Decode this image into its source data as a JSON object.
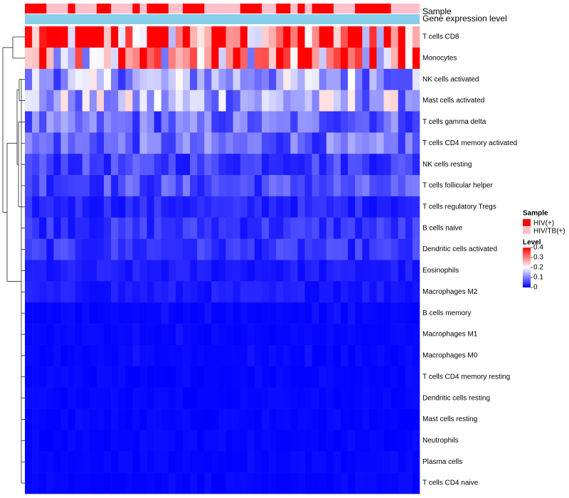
{
  "chart_data": {
    "type": "heatmap",
    "annotation_tracks": [
      {
        "title": "Sample",
        "values": [
          "HIV(+)",
          "HIV(+)",
          "HIV(+)",
          "HIV/TB(+)",
          "HIV/TB(+)",
          "HIV/TB(+)",
          "HIV(+)",
          "HIV/TB(+)",
          "HIV/TB(+)",
          "HIV/TB(+)",
          "HIV(+)",
          "HIV(+)",
          "HIV/TB(+)",
          "HIV/TB(+)",
          "HIV/TB(+)",
          "HIV(+)",
          "HIV/TB(+)",
          "HIV(+)",
          "HIV(+)",
          "HIV(+)",
          "HIV/TB(+)",
          "HIV/TB(+)",
          "HIV(+)",
          "HIV(+)",
          "HIV(+)",
          "HIV/TB(+)",
          "HIV/TB(+)",
          "HIV/TB(+)",
          "HIV/TB(+)",
          "HIV/TB(+)",
          "HIV(+)",
          "HIV(+)",
          "HIV(+)",
          "HIV/TB(+)",
          "HIV/TB(+)",
          "HIV(+)",
          "HIV(+)",
          "HIV/TB(+)",
          "HIV(+)",
          "HIV/TB(+)",
          "HIV(+)",
          "HIV(+)",
          "HIV(+)",
          "HIV/TB(+)",
          "HIV/TB(+)",
          "HIV/TB(+)",
          "HIV(+)",
          "HIV(+)",
          "HIV(+)",
          "HIV(+)",
          "HIV(+)",
          "HIV/TB(+)",
          "HIV/TB(+)",
          "HIV/TB(+)",
          "HIV/TB(+)"
        ]
      },
      {
        "title": "Gene expression level",
        "color": "#87ceeb"
      }
    ],
    "rows": [
      "T cells CD8",
      "Monocytes",
      "NK cells activated",
      "Mast cells activated",
      "T cells gamma delta",
      "T cells CD4 memory activated",
      "NK cells resting",
      "T cells follicular helper",
      "T cells regulatory  Tregs",
      "B cells naive",
      "Dendritic cells activated",
      "Eosinophils",
      "Macrophages M2",
      "B cells memory",
      "Macrophages M1",
      "Macrophages M0",
      "T cells CD4 memory resting",
      "Dendritic cells resting",
      "Mast cells resting",
      "Neutrophils",
      "Plasma cells",
      "T cells CD4 naive"
    ],
    "n_columns": 55,
    "row_means": [
      0.32,
      0.28,
      0.13,
      0.14,
      0.08,
      0.08,
      0.05,
      0.06,
      0.03,
      0.04,
      0.04,
      0.02,
      0.02,
      0.012,
      0.01,
      0.01,
      0.005,
      0.004,
      0.003,
      0.002,
      0.008,
      0.005
    ],
    "legend": {
      "title": "Sample",
      "entries": [
        {
          "label": "HIV(+)",
          "color": "#ff0000"
        },
        {
          "label": "HIV/TB(+)",
          "color": "#ffc0cb"
        }
      ]
    },
    "colorbar": {
      "title": "Level",
      "range": [
        0,
        0.4
      ],
      "ticks": [
        "0.4",
        "0.3",
        "0.2",
        "0.1",
        "0"
      ],
      "tick_values": [
        0.4,
        0.3,
        0.2,
        0.1,
        0
      ],
      "colors": {
        "low": "#0000ff",
        "mid": "#ffffff",
        "high": "#ff0000"
      }
    },
    "dendrogram_side": "left"
  }
}
